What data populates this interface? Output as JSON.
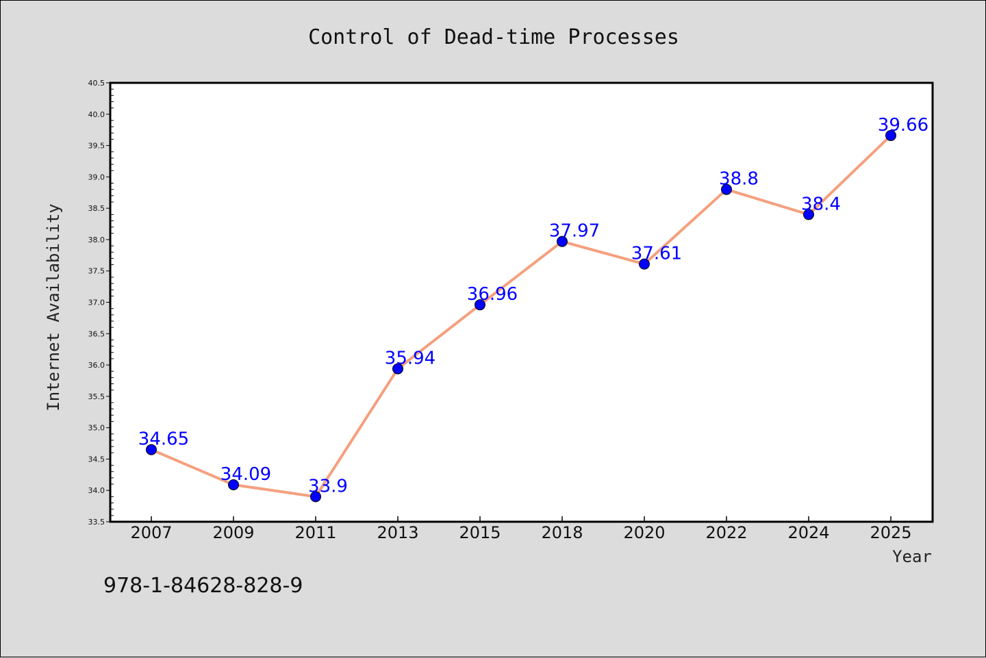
{
  "chart_data": {
    "type": "line",
    "title": "Control of Dead-time Processes",
    "xlabel": "Year",
    "ylabel": "Internet Availability",
    "categories": [
      "2007",
      "2009",
      "2011",
      "2013",
      "2015",
      "2018",
      "2020",
      "2022",
      "2024",
      "2025"
    ],
    "series": [
      {
        "values": [
          34.65,
          34.09,
          33.9,
          35.94,
          36.96,
          37.97,
          37.61,
          38.8,
          38.4,
          39.66
        ],
        "line_color": "#f4a07e",
        "marker_color": "#0000ff"
      }
    ],
    "data_labels": [
      "34.65",
      "34.09",
      "33.9",
      "35.94",
      "36.96",
      "37.97",
      "37.61",
      "38.8",
      "38.4",
      "39.66"
    ],
    "ylim": [
      33.5,
      40.5
    ],
    "yticks": [
      "33.5",
      "34.0",
      "34.5",
      "35.0",
      "35.5",
      "36.0",
      "36.5",
      "37.0",
      "37.5",
      "38.0",
      "38.5",
      "39.0",
      "39.5",
      "40.0",
      "40.5"
    ],
    "grid": false,
    "legend": "none"
  },
  "footnote": "978-1-84628-828-9"
}
